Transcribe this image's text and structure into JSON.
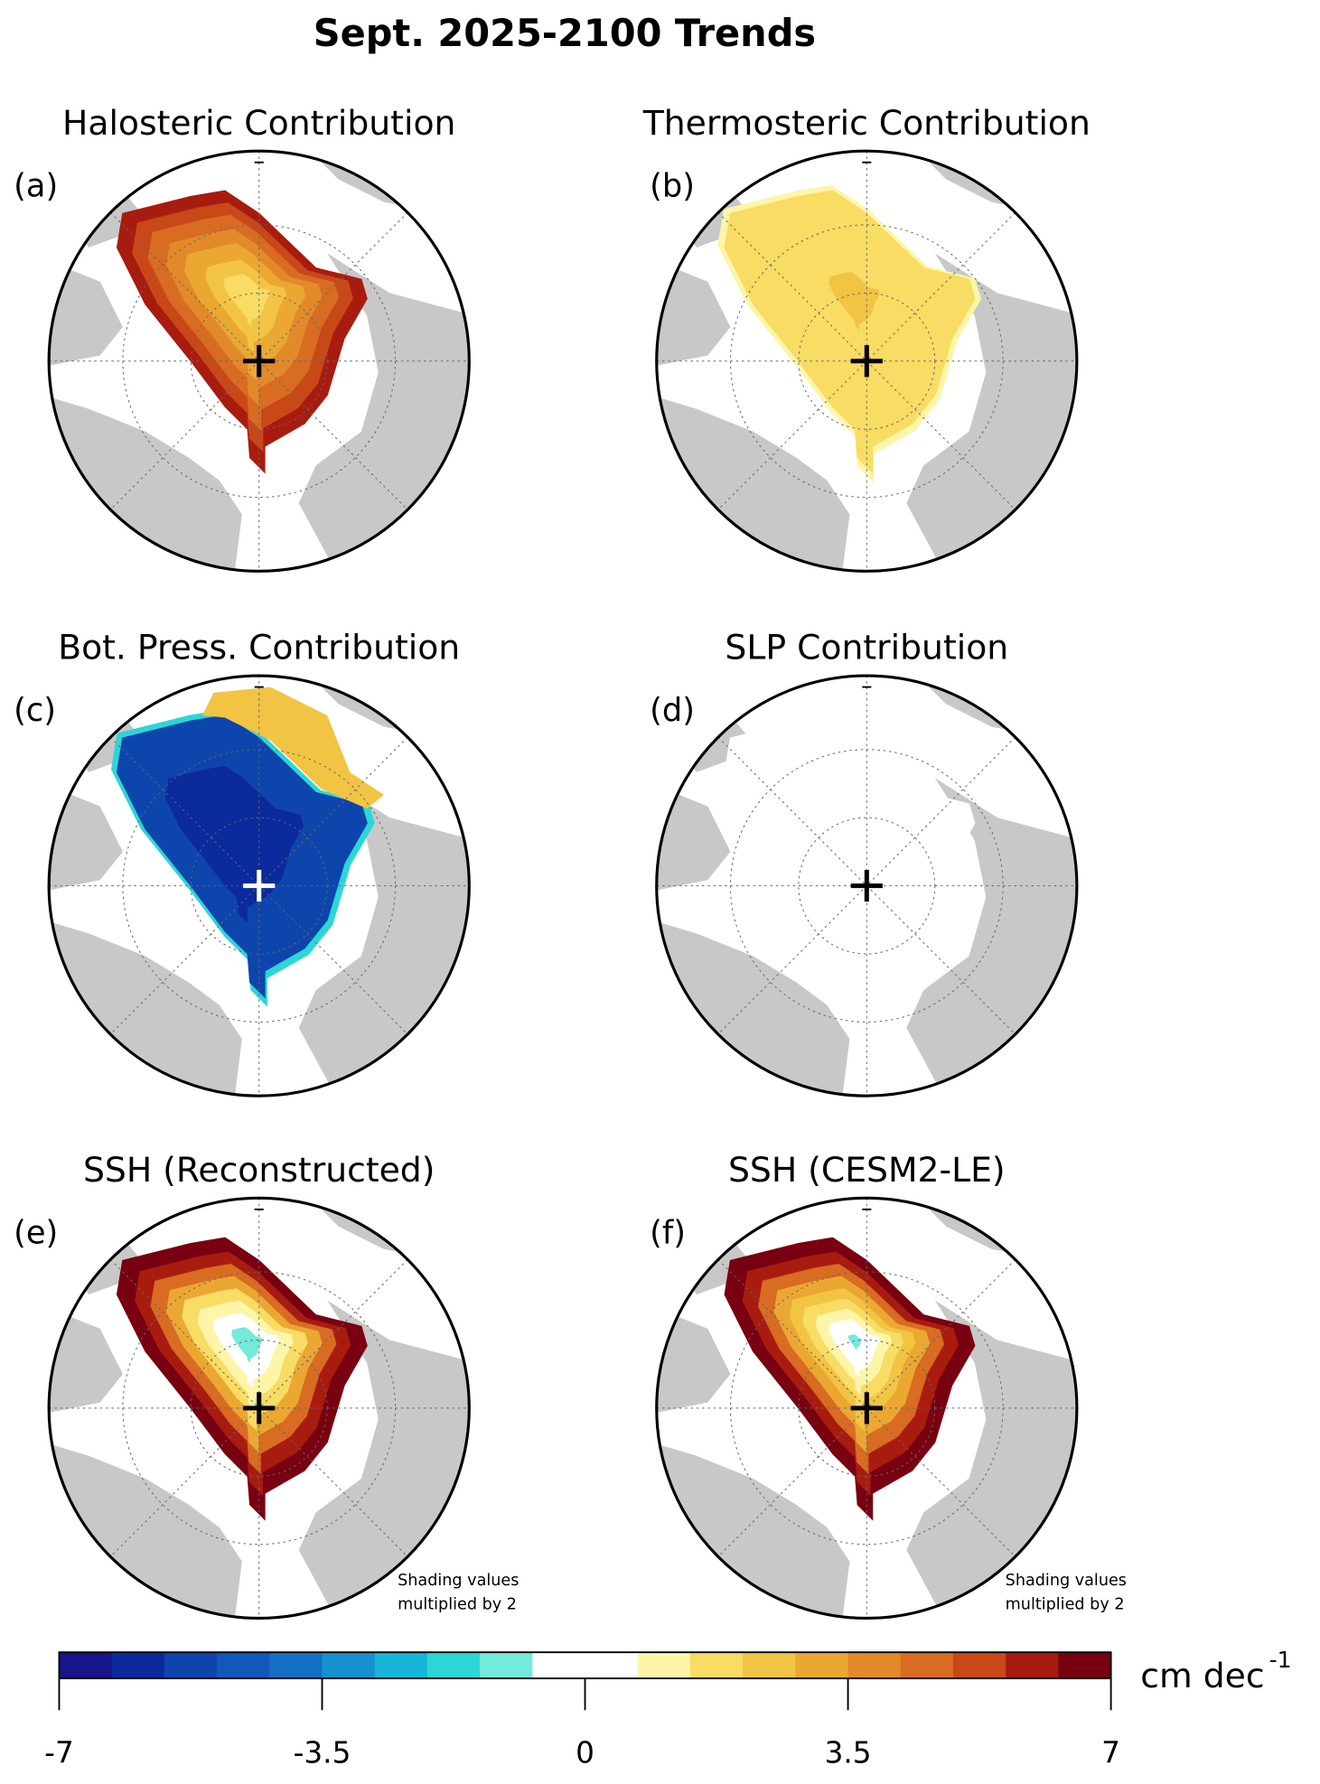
{
  "title": "Sept. 2025-2100 Trends",
  "panels": [
    {
      "label": "(a)",
      "title": "Halosteric Contribution"
    },
    {
      "label": "(b)",
      "title": "Thermosteric Contribution"
    },
    {
      "label": "(c)",
      "title": "Bot. Press. Contribution"
    },
    {
      "label": "(d)",
      "title": "SLP Contribution"
    },
    {
      "label": "(e)",
      "title": "SSH (Reconstructed)",
      "note": [
        "Shading values",
        "multiplied by 2"
      ]
    },
    {
      "label": "(f)",
      "title": "SSH (CESM2-LE)",
      "note": [
        "Shading values",
        "multiplied by 2"
      ]
    }
  ],
  "colorbar": {
    "lim": [
      -7,
      7
    ],
    "ticks": [
      -7,
      -3.5,
      0,
      3.5,
      7
    ],
    "colors": [
      "#16158a",
      "#0b2a9c",
      "#0e45ad",
      "#1158bb",
      "#1470c4",
      "#1790cf",
      "#16b5d8",
      "#2cd6d6",
      "#74eadb",
      "#ffffff",
      "#ffffff",
      "#fdf5a8",
      "#f8dc64",
      "#f2c444",
      "#eaa832",
      "#e28a2a",
      "#d86c22",
      "#c84818",
      "#a81c10",
      "#780010"
    ],
    "unit": "cm dec",
    "unit_exponent": "-1"
  }
}
